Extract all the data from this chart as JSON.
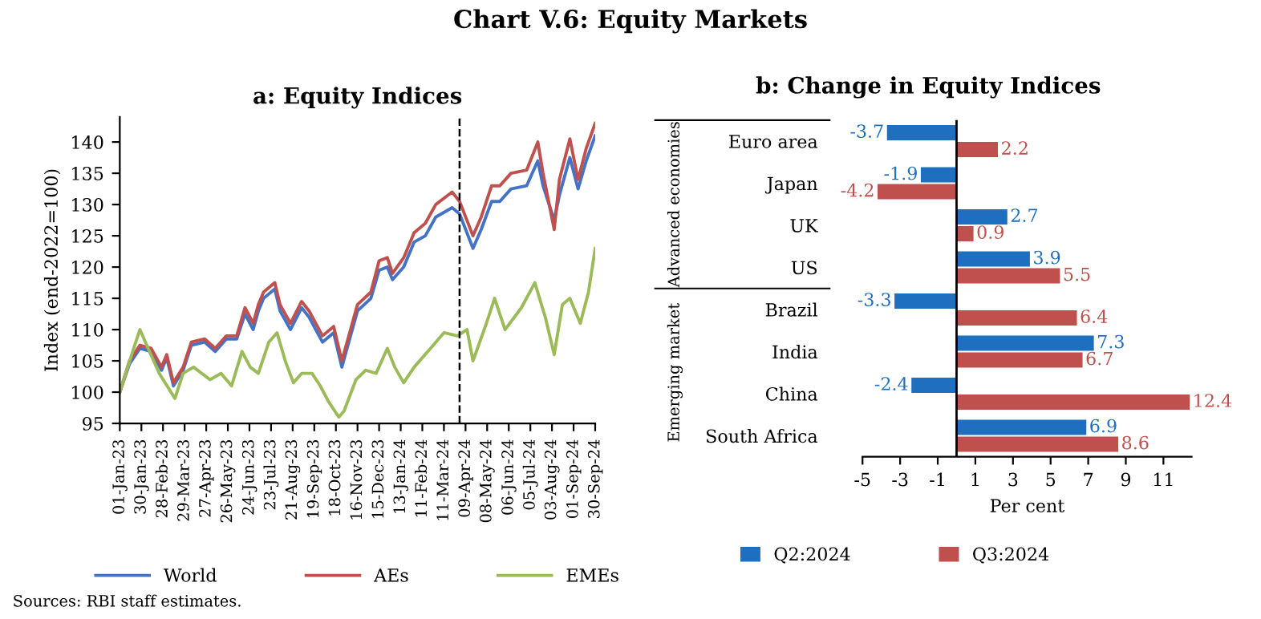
{
  "chart_data": [
    {
      "type": "line",
      "title": "Chart V.6: Equity Markets",
      "subtitle": "a: Equity Indices",
      "ylabel": "Index (end-2022=100)",
      "xlim": [
        "2023-01-01",
        "2024-09-30"
      ],
      "ylim": [
        95,
        144
      ],
      "yticks": [
        95,
        100,
        105,
        110,
        115,
        120,
        125,
        130,
        135,
        140
      ],
      "xticks": [
        {
          "value": "2023-01-01",
          "label": "01-Jan-23"
        },
        {
          "value": "2023-01-30",
          "label": "30-Jan-23"
        },
        {
          "value": "2023-02-28",
          "label": "28-Feb-23"
        },
        {
          "value": "2023-03-29",
          "label": "29-Mar-23"
        },
        {
          "value": "2023-04-27",
          "label": "27-Apr-23"
        },
        {
          "value": "2023-05-26",
          "label": "26-May-23"
        },
        {
          "value": "2023-06-24",
          "label": "24-Jun-23"
        },
        {
          "value": "2023-07-23",
          "label": "23-Jul-23"
        },
        {
          "value": "2023-08-21",
          "label": "21-Aug-23"
        },
        {
          "value": "2023-09-19",
          "label": "19-Sep-23"
        },
        {
          "value": "2023-10-18",
          "label": "18-Oct-23"
        },
        {
          "value": "2023-11-16",
          "label": "16-Nov-23"
        },
        {
          "value": "2023-12-15",
          "label": "15-Dec-23"
        },
        {
          "value": "2024-01-13",
          "label": "13-Jan-24"
        },
        {
          "value": "2024-02-11",
          "label": "11-Feb-24"
        },
        {
          "value": "2024-03-11",
          "label": "11-Mar-24"
        },
        {
          "value": "2024-04-09",
          "label": "09-Apr-24"
        },
        {
          "value": "2024-05-08",
          "label": "08-May-24"
        },
        {
          "value": "2024-06-06",
          "label": "06-Jun-24"
        },
        {
          "value": "2024-07-05",
          "label": "05-Jul-24"
        },
        {
          "value": "2024-08-03",
          "label": "03-Aug-24"
        },
        {
          "value": "2024-09-01",
          "label": "01-Sep-24"
        },
        {
          "value": "2024-09-30",
          "label": "30-Sep-24"
        }
      ],
      "series": [
        {
          "name": "World",
          "color": "#4472c4",
          "x": [
            "2023-01-01",
            "2023-01-14",
            "2023-01-28",
            "2023-02-12",
            "2023-02-26",
            "2023-03-05",
            "2023-03-14",
            "2023-03-27",
            "2023-04-07",
            "2023-04-25",
            "2023-05-09",
            "2023-05-24",
            "2023-06-07",
            "2023-06-18",
            "2023-06-29",
            "2023-07-06",
            "2023-07-13",
            "2023-07-28",
            "2023-08-04",
            "2023-08-18",
            "2023-09-02",
            "2023-09-12",
            "2023-09-30",
            "2023-10-15",
            "2023-10-26",
            "2023-11-02",
            "2023-11-16",
            "2023-12-04",
            "2023-12-15",
            "2023-12-26",
            "2024-01-02",
            "2024-01-17",
            "2024-01-31",
            "2024-02-15",
            "2024-02-29",
            "2024-03-22",
            "2024-04-01",
            "2024-04-19",
            "2024-04-30",
            "2024-05-14",
            "2024-05-25",
            "2024-06-09",
            "2024-06-30",
            "2024-07-15",
            "2024-07-22",
            "2024-08-06",
            "2024-08-13",
            "2024-08-27",
            "2024-09-07",
            "2024-09-18",
            "2024-09-30"
          ],
          "values": [
            100,
            104.5,
            107,
            106.5,
            103.5,
            105.5,
            101,
            103.5,
            107.5,
            108,
            106.5,
            108.5,
            108.5,
            112.5,
            110,
            113,
            115,
            116.5,
            113,
            110,
            113.5,
            112,
            108,
            109.5,
            104,
            107,
            113,
            115,
            119.5,
            120,
            118,
            120,
            124,
            125,
            128,
            129.5,
            128.5,
            123,
            126,
            130.5,
            130.5,
            132.5,
            133,
            137,
            133,
            127.5,
            131.5,
            137.5,
            132.5,
            137,
            141
          ]
        },
        {
          "name": "AEs",
          "color": "#c0504d",
          "x": [
            "2023-01-01",
            "2023-01-14",
            "2023-01-28",
            "2023-02-12",
            "2023-02-26",
            "2023-03-05",
            "2023-03-14",
            "2023-03-27",
            "2023-04-07",
            "2023-04-25",
            "2023-05-09",
            "2023-05-24",
            "2023-06-07",
            "2023-06-18",
            "2023-06-29",
            "2023-07-06",
            "2023-07-13",
            "2023-07-28",
            "2023-08-04",
            "2023-08-18",
            "2023-09-02",
            "2023-09-12",
            "2023-09-30",
            "2023-10-15",
            "2023-10-26",
            "2023-11-02",
            "2023-11-16",
            "2023-12-04",
            "2023-12-15",
            "2023-12-26",
            "2024-01-02",
            "2024-01-17",
            "2024-01-31",
            "2024-02-15",
            "2024-02-29",
            "2024-03-22",
            "2024-04-01",
            "2024-04-19",
            "2024-04-30",
            "2024-05-14",
            "2024-05-25",
            "2024-06-09",
            "2024-06-30",
            "2024-07-15",
            "2024-07-22",
            "2024-08-06",
            "2024-08-13",
            "2024-08-27",
            "2024-09-07",
            "2024-09-18",
            "2024-09-30"
          ],
          "values": [
            100,
            105,
            107.5,
            107,
            104,
            106,
            101.5,
            104,
            108,
            108.5,
            107,
            109,
            109,
            113.5,
            111,
            114,
            116,
            117.5,
            114,
            111,
            114.5,
            113,
            109,
            110.5,
            105,
            108,
            114,
            116,
            121,
            121.5,
            119,
            121.5,
            125.5,
            127,
            130,
            132,
            130.5,
            125,
            128,
            133,
            133,
            135,
            135.5,
            140,
            135,
            126,
            134,
            140.5,
            134,
            139,
            143
          ]
        },
        {
          "name": "EMEs",
          "color": "#9bbb59",
          "x": [
            "2023-01-01",
            "2023-01-21",
            "2023-01-28",
            "2023-02-08",
            "2023-02-23",
            "2023-03-16",
            "2023-03-27",
            "2023-04-10",
            "2023-05-02",
            "2023-05-17",
            "2023-05-31",
            "2023-06-14",
            "2023-06-25",
            "2023-07-06",
            "2023-07-20",
            "2023-07-31",
            "2023-08-11",
            "2023-08-22",
            "2023-09-02",
            "2023-09-16",
            "2023-09-27",
            "2023-10-08",
            "2023-10-22",
            "2023-10-29",
            "2023-11-14",
            "2023-11-27",
            "2023-12-11",
            "2023-12-26",
            "2024-01-05",
            "2024-01-17",
            "2024-01-31",
            "2024-02-22",
            "2024-03-11",
            "2024-03-29",
            "2024-04-11",
            "2024-04-19",
            "2024-05-07",
            "2024-05-18",
            "2024-06-01",
            "2024-06-23",
            "2024-07-11",
            "2024-07-25",
            "2024-08-06",
            "2024-08-17",
            "2024-08-27",
            "2024-09-10",
            "2024-09-21",
            "2024-09-30"
          ],
          "values": [
            100,
            107.5,
            110,
            107,
            103,
            99,
            103,
            104,
            102,
            103,
            101,
            106.5,
            104,
            103,
            108,
            109.5,
            105,
            101.5,
            103,
            103,
            101,
            98.5,
            96,
            97,
            102,
            103.5,
            103,
            107,
            104,
            101.5,
            104,
            107,
            109.5,
            109,
            110,
            105,
            111,
            115,
            110,
            113.5,
            117.5,
            112,
            106,
            114,
            115,
            111,
            116,
            123
          ]
        }
      ],
      "ref_lines": [
        {
          "axis": "x",
          "value": "2024-04-01",
          "color": "#000000",
          "line_style": "dashed"
        }
      ],
      "legend": "bottom",
      "grid": false,
      "annotations": [
        "Sources: RBI staff estimates."
      ]
    },
    {
      "type": "bar",
      "orientation": "horizontal",
      "title": "b: Change in Equity Indices",
      "xlabel": "Per cent",
      "categories": [
        "Euro area",
        "Japan",
        "UK",
        "US",
        "Brazil",
        "India",
        "China",
        "South Africa"
      ],
      "xlim": [
        -5,
        12.5
      ],
      "xticks": [
        -5,
        -3,
        -1,
        1,
        3,
        5,
        7,
        9,
        11
      ],
      "series": [
        {
          "name": "Q2:2024",
          "color": "#1f6fc0",
          "values": [
            -3.7,
            -1.9,
            2.7,
            3.9,
            -3.3,
            7.3,
            -2.4,
            6.9
          ]
        },
        {
          "name": "Q3:2024",
          "color": "#c0504d",
          "values": [
            2.2,
            -4.2,
            0.9,
            5.5,
            6.4,
            6.7,
            12.4,
            8.6
          ]
        }
      ],
      "data_labels": true,
      "legend": "bottom",
      "grid": false,
      "annotations": [
        "Advanced economies",
        "Emerging market"
      ]
    }
  ]
}
